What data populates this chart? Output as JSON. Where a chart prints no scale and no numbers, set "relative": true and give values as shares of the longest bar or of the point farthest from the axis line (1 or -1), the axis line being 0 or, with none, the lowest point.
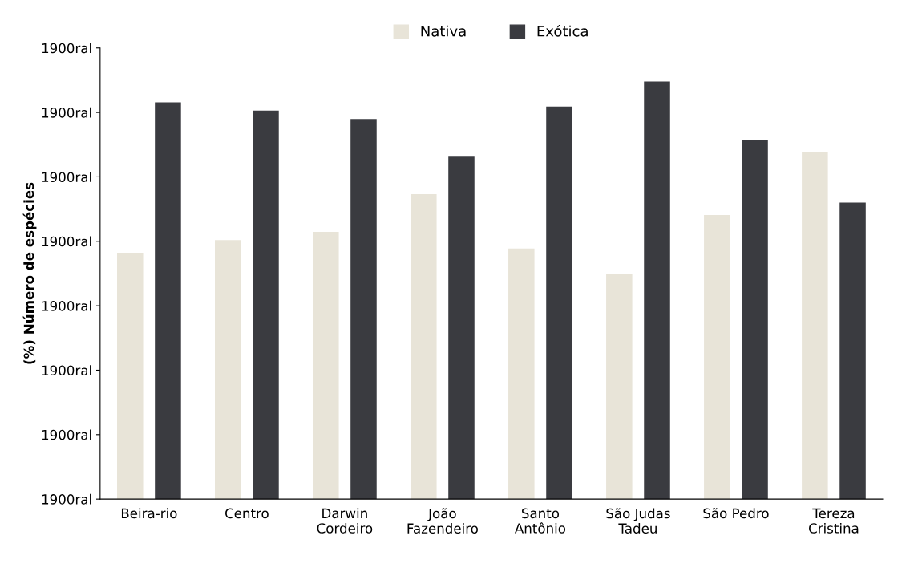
{
  "chart_data": {
    "type": "bar",
    "ylabel": "(%) Número de espécies",
    "relative": true,
    "categories": [
      "Beira-rio",
      "Centro",
      "Darwin\nCordeiro",
      "João\nFazendeiro",
      "Santo\nAntônio",
      "São Judas\nTadeu",
      "São Pedro",
      "Tereza\nCristina"
    ],
    "series": [
      {
        "name": "Nativa",
        "color": "#e8e4d8",
        "values": [
          0.59,
          0.62,
          0.64,
          0.73,
          0.6,
          0.54,
          0.68,
          0.83
        ]
      },
      {
        "name": "Exótica",
        "color": "#3a3b40",
        "values": [
          0.95,
          0.93,
          0.91,
          0.82,
          0.94,
          1,
          0.86,
          0.71
        ]
      }
    ],
    "annotations": [
      "1900ral",
      "1900ral",
      "1900ral",
      "1900ral",
      "1900ral",
      "1900ral",
      "1900ral",
      "1900ral"
    ],
    "grid": false,
    "legend": "top"
  }
}
